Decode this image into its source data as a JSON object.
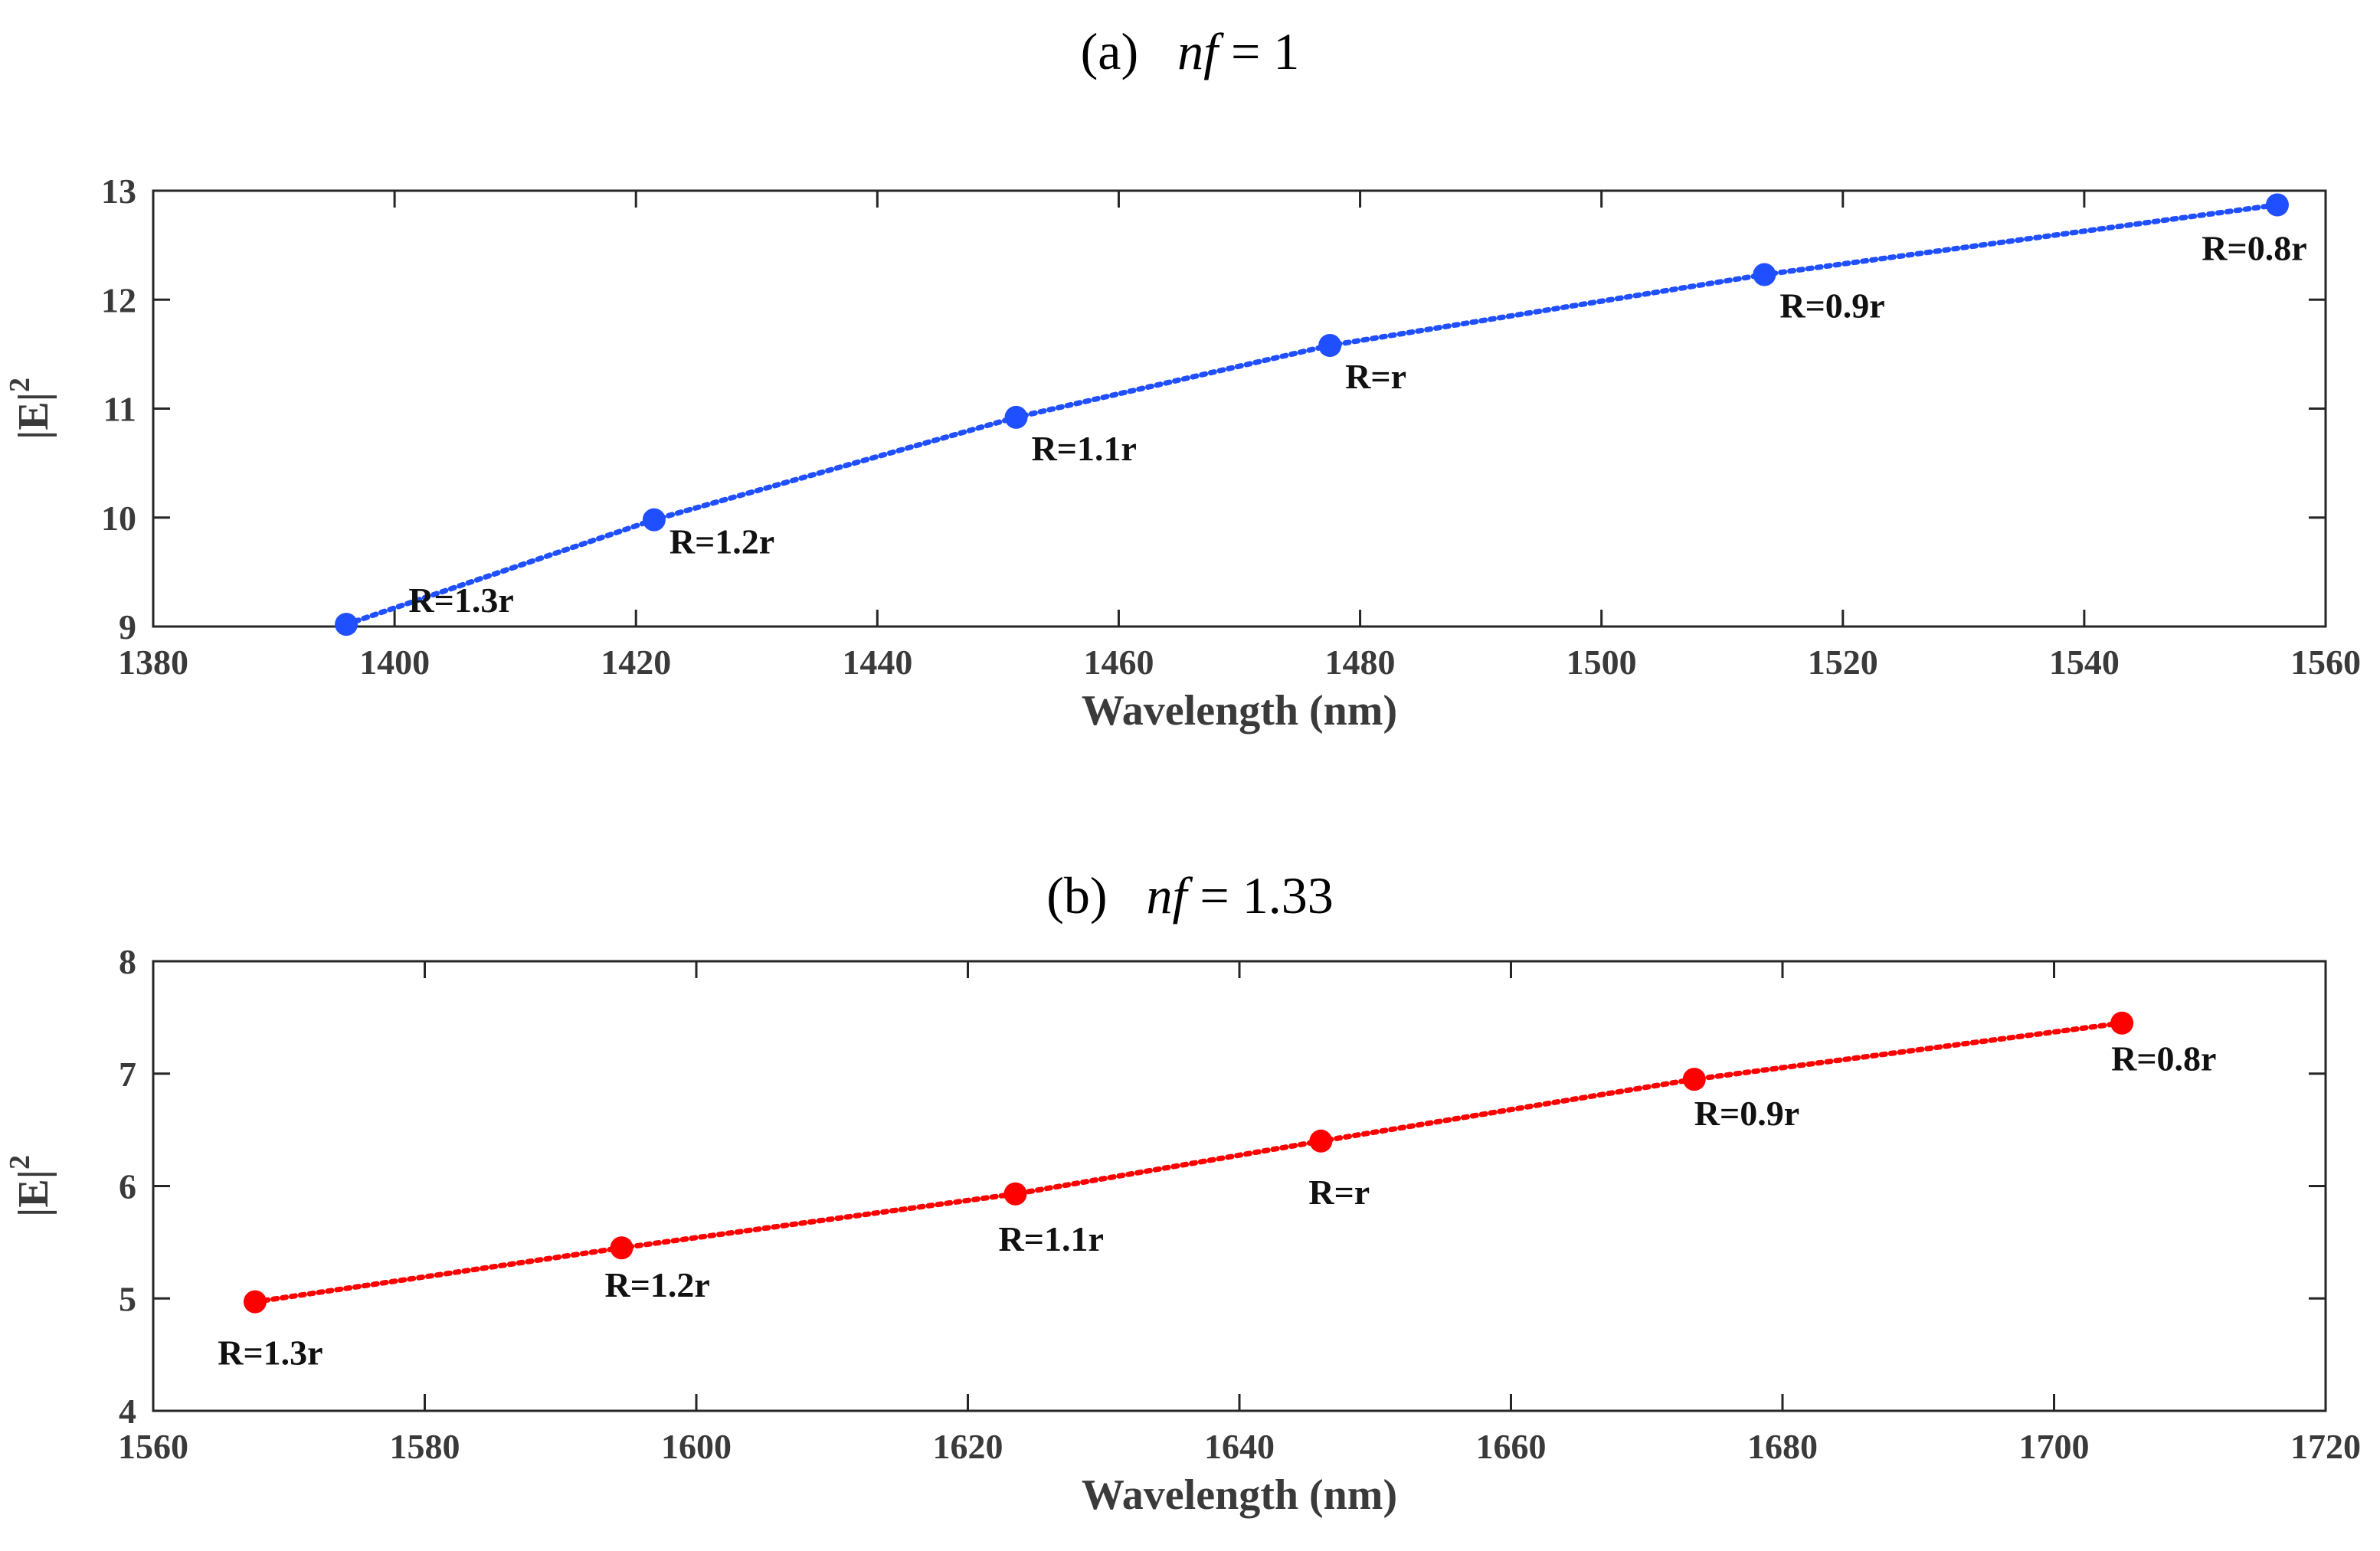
{
  "chart_data": [
    {
      "type": "line",
      "panel": "(a)",
      "title_prefix": "(a)",
      "title_var": "nf",
      "title_value": "= 1",
      "xlabel": "Wavelength (nm)",
      "ylabel_base": "|E|",
      "ylabel_exp": "2",
      "xlim": [
        1380,
        1560
      ],
      "ylim": [
        9,
        13
      ],
      "xticks": [
        1380,
        1400,
        1420,
        1440,
        1460,
        1480,
        1500,
        1520,
        1540,
        1560
      ],
      "yticks": [
        9,
        10,
        11,
        12,
        13
      ],
      "color": "#1f4fff",
      "series": [
        {
          "name": "nf=1",
          "x": [
            1396,
            1421.5,
            1451.5,
            1477.5,
            1513.5,
            1556
          ],
          "y": [
            9.02,
            9.98,
            10.92,
            11.58,
            12.23,
            12.87
          ],
          "labels": [
            "R=1.3r",
            "R=1.2r",
            "R=1.1r",
            "R=r",
            "R=0.9r",
            "R=0.8r"
          ]
        }
      ]
    },
    {
      "type": "line",
      "panel": "(b)",
      "title_prefix": "(b)",
      "title_var": "nf",
      "title_value": "= 1.33",
      "xlabel": "Wavelength (nm)",
      "ylabel_base": "|E|",
      "ylabel_exp": "2",
      "xlim": [
        1560,
        1720
      ],
      "ylim": [
        4,
        8
      ],
      "xticks": [
        1560,
        1580,
        1600,
        1620,
        1640,
        1660,
        1680,
        1700,
        1720
      ],
      "yticks": [
        4,
        5,
        6,
        7,
        8
      ],
      "color": "#ff0000",
      "series": [
        {
          "name": "nf=1.33",
          "x": [
            1567.5,
            1594.5,
            1623.5,
            1646,
            1673.5,
            1705
          ],
          "y": [
            4.97,
            5.45,
            5.93,
            6.4,
            6.95,
            7.45
          ],
          "labels": [
            "R=1.3r",
            "R=1.2r",
            "R=1.1r",
            "R=r",
            "R=0.9r",
            "R=0.8r"
          ]
        }
      ]
    }
  ]
}
